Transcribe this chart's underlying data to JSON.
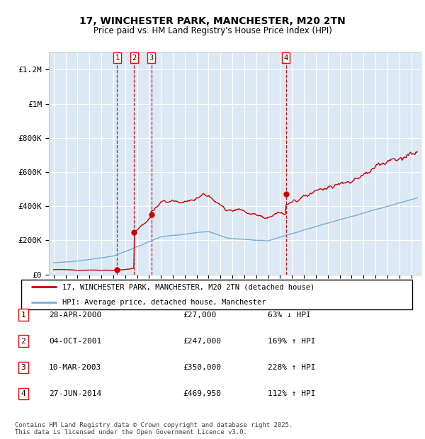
{
  "title": "17, WINCHESTER PARK, MANCHESTER, M20 2TN",
  "subtitle": "Price paid vs. HM Land Registry's House Price Index (HPI)",
  "ylim": [
    0,
    1300000
  ],
  "yticks": [
    0,
    200000,
    400000,
    600000,
    800000,
    1000000,
    1200000
  ],
  "ytick_labels": [
    "£0",
    "£200K",
    "£400K",
    "£600K",
    "£800K",
    "£1M",
    "£1.2M"
  ],
  "background_color": "#dce9f5",
  "grid_color": "#ffffff",
  "sale_color": "#cc0000",
  "hpi_color": "#7aadcc",
  "sale_labels": [
    "1",
    "2",
    "3",
    "4"
  ],
  "vline_color": "#cc0000",
  "legend_sale_label": "17, WINCHESTER PARK, MANCHESTER, M20 2TN (detached house)",
  "legend_hpi_label": "HPI: Average price, detached house, Manchester",
  "table_rows": [
    [
      "1",
      "28-APR-2000",
      "£27,000",
      "63% ↓ HPI"
    ],
    [
      "2",
      "04-OCT-2001",
      "£247,000",
      "169% ↑ HPI"
    ],
    [
      "3",
      "10-MAR-2003",
      "£350,000",
      "228% ↑ HPI"
    ],
    [
      "4",
      "27-JUN-2014",
      "£469,950",
      "112% ↑ HPI"
    ]
  ],
  "footer": "Contains HM Land Registry data © Crown copyright and database right 2025.\nThis data is licensed under the Open Government Licence v3.0.",
  "x_start_year": 1995,
  "x_end_year": 2025,
  "sale_year_nums": [
    2000.33,
    2001.75,
    2003.19,
    2014.49
  ],
  "sale_prices": [
    27000,
    247000,
    350000,
    469950
  ]
}
